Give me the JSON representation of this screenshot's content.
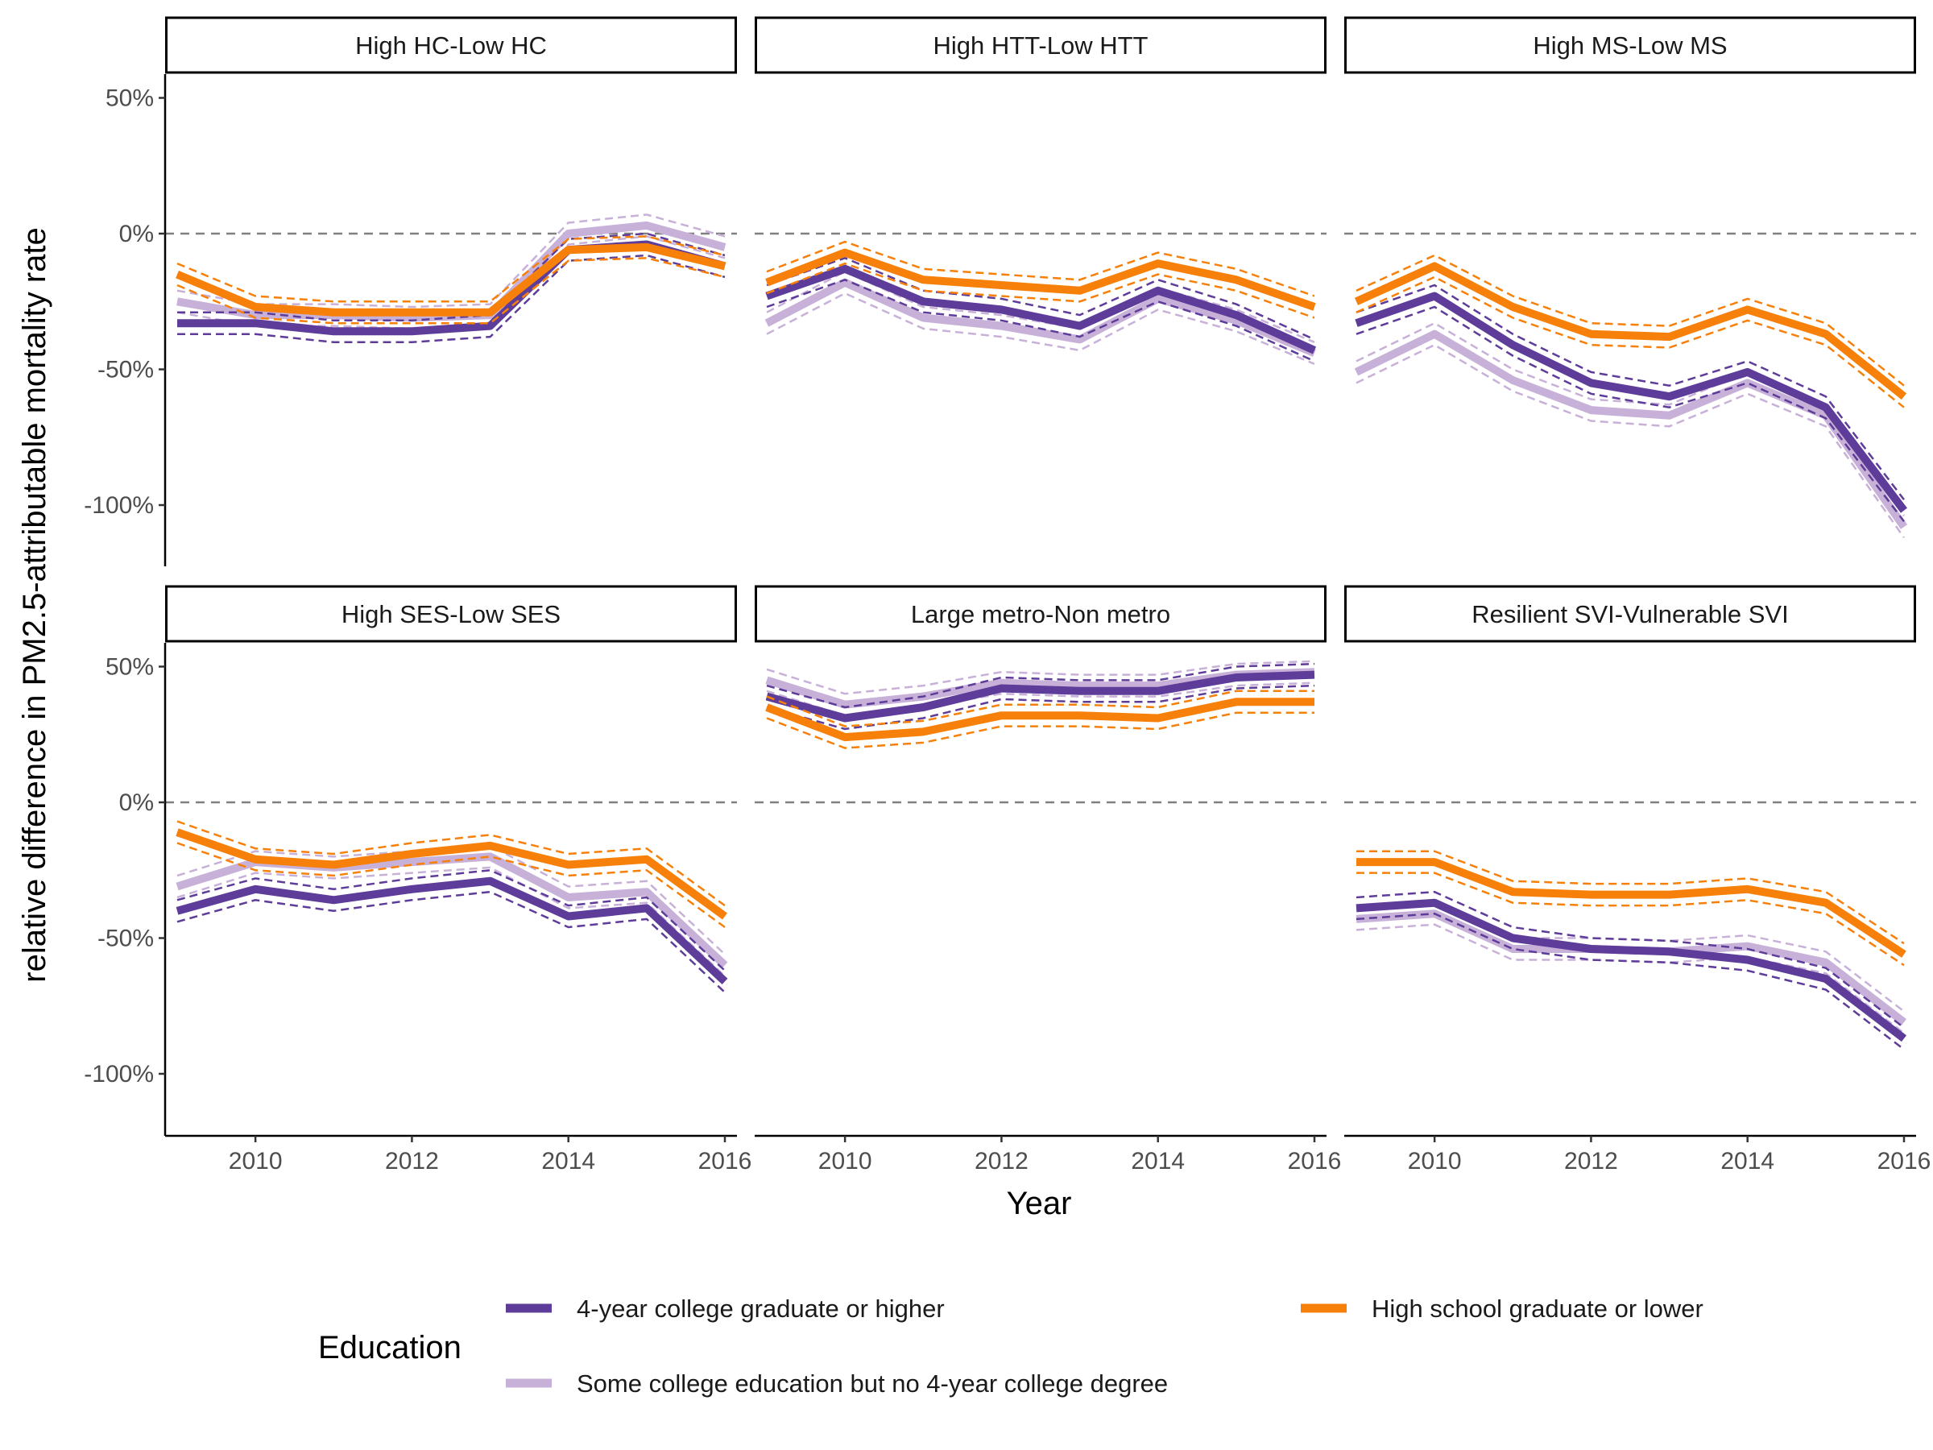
{
  "chart_data": {
    "type": "line",
    "xlabel": "Year",
    "ylabel": "relative difference in PM2.5-attributable mortality rate",
    "x": [
      2009,
      2010,
      2011,
      2012,
      2013,
      2014,
      2015,
      2016
    ],
    "xticks": [
      2010,
      2012,
      2014,
      2016
    ],
    "xtick_labels": [
      "2010",
      "2012",
      "2014",
      "2016"
    ],
    "xlim": [
      2008.8,
      2016.2
    ],
    "ylim": [
      -122,
      58
    ],
    "yticks": [
      50,
      0,
      -50,
      -100
    ],
    "ytick_labels": [
      "50%",
      "0%",
      "-50%",
      "-100%"
    ],
    "reference_line": 0,
    "ci_halfwidth": 4,
    "grid": false,
    "legend": {
      "title": "Education",
      "position": "bottom",
      "entries": [
        {
          "key": "college",
          "label": "4-year college graduate or higher"
        },
        {
          "key": "hs",
          "label": "High school graduate or lower"
        },
        {
          "key": "some",
          "label": "Some college education but no 4-year college degree"
        }
      ]
    },
    "colors": {
      "college": "#5e3c99",
      "some": "#c8b1d8",
      "hs": "#f7800a",
      "zero_line": "#808080"
    },
    "panels": [
      {
        "title": "High HC-Low HC",
        "series": {
          "college": [
            -33,
            -33,
            -36,
            -36,
            -34,
            -6,
            -4,
            -12
          ],
          "some": [
            -25,
            -30,
            -30,
            -31,
            -30,
            0,
            3,
            -5
          ],
          "hs": [
            -15,
            -27,
            -29,
            -29,
            -29,
            -6,
            -5,
            -12
          ]
        }
      },
      {
        "title": "High HTT-Low HTT",
        "series": {
          "college": [
            -23,
            -13,
            -25,
            -28,
            -34,
            -21,
            -30,
            -43
          ],
          "some": [
            -33,
            -18,
            -31,
            -34,
            -39,
            -24,
            -32,
            -44
          ],
          "hs": [
            -18,
            -7,
            -17,
            -19,
            -21,
            -11,
            -17,
            -27
          ]
        }
      },
      {
        "title": "High MS-Low MS",
        "series": {
          "college": [
            -33,
            -23,
            -41,
            -55,
            -60,
            -51,
            -64,
            -102
          ],
          "some": [
            -51,
            -37,
            -54,
            -65,
            -67,
            -55,
            -67,
            -108
          ],
          "hs": [
            -25,
            -12,
            -27,
            -37,
            -38,
            -28,
            -37,
            -60
          ]
        }
      },
      {
        "title": "High SES-Low SES",
        "series": {
          "college": [
            -40,
            -32,
            -36,
            -32,
            -29,
            -42,
            -39,
            -66
          ],
          "some": [
            -31,
            -22,
            -24,
            -22,
            -20,
            -35,
            -33,
            -60
          ],
          "hs": [
            -11,
            -21,
            -23,
            -19,
            -16,
            -23,
            -21,
            -42
          ]
        }
      },
      {
        "title": "Large metro-Non metro",
        "series": {
          "college": [
            39,
            31,
            35,
            42,
            41,
            41,
            46,
            47
          ],
          "some": [
            45,
            36,
            39,
            44,
            43,
            43,
            47,
            48
          ],
          "hs": [
            35,
            24,
            26,
            32,
            32,
            31,
            37,
            37
          ]
        }
      },
      {
        "title": "Resilient SVI-Vulnerable SVI",
        "series": {
          "college": [
            -39,
            -37,
            -50,
            -54,
            -55,
            -58,
            -65,
            -87
          ],
          "some": [
            -43,
            -41,
            -54,
            -54,
            -55,
            -53,
            -59,
            -81
          ],
          "hs": [
            -22,
            -22,
            -33,
            -34,
            -34,
            -32,
            -37,
            -56
          ]
        }
      }
    ]
  }
}
